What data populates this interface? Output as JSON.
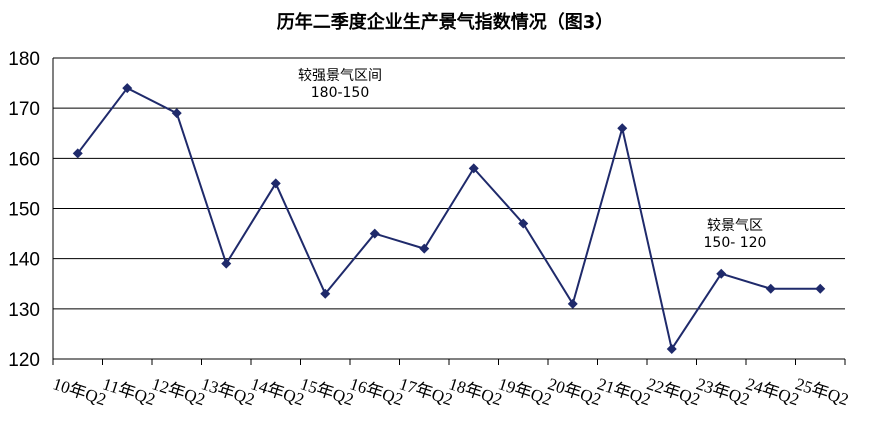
{
  "chart_data": {
    "type": "line",
    "title": "历年二季度企业生产景气指数情况（图3）",
    "categories": [
      "10年Q2",
      "11年Q2",
      "12年Q2",
      "13年Q2",
      "14年Q2",
      "15年Q2",
      "16年Q2",
      "17年Q2",
      "18年Q2",
      "19年Q2",
      "20年Q2",
      "21年Q2",
      "22年Q2",
      "23年Q2",
      "24年Q2",
      "25年Q2"
    ],
    "series": [
      {
        "name": "企业生产景气指数",
        "color": "#1f2a6b",
        "values": [
          161,
          174,
          169,
          139,
          155,
          133,
          145,
          142,
          158,
          147,
          131,
          166,
          122,
          137,
          134,
          134
        ]
      }
    ],
    "ylim": [
      120,
      180
    ],
    "yticks": [
      120,
      130,
      140,
      150,
      160,
      170,
      180
    ],
    "grid": true,
    "annotations": [
      [
        "较强景气区间",
        "180-150"
      ],
      [
        "较景气区",
        "150- 120"
      ]
    ]
  }
}
